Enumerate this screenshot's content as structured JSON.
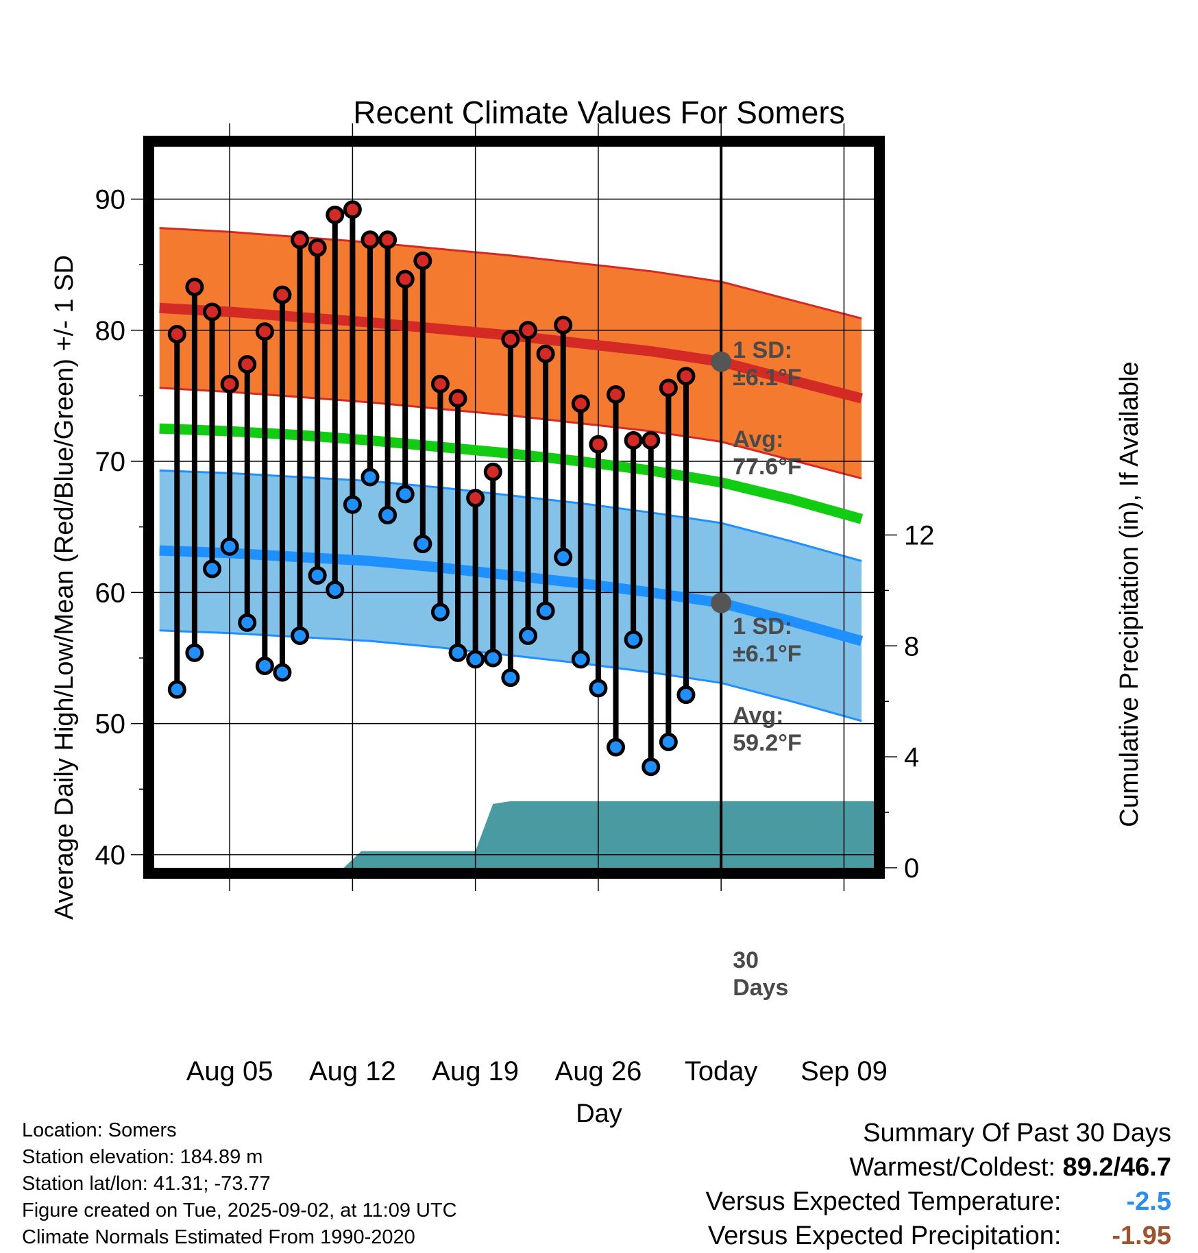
{
  "colors": {
    "high_band": "#f47a30",
    "high_line": "#d42a26",
    "mean_line": "#11cc11",
    "low_band": "#82c1e8",
    "low_line": "#1e90ff",
    "precip_fill": "#4a9aa2",
    "high_marker": "#d42a26",
    "low_marker": "#1e90ff",
    "avg_marker": "#555555",
    "temp_departure": "#2a8ef0",
    "precip_departure": "#a0522d"
  },
  "footer": {
    "location": "Location: Somers",
    "elevation": "Station elevation: 184.89 m",
    "latlon": "Station lat/lon: 41.31; -73.77",
    "created": "Figure created on Tue, 2025-09-02, at 11:09 UTC",
    "normals": "Climate Normals Estimated From 1990-2020"
  },
  "summary": {
    "heading": "Summary Of Past 30 Days",
    "warm_cold_label": "Warmest/Coldest:",
    "warm_cold_value": "89.2/46.7",
    "temp_label": "Versus Expected Temperature:",
    "temp_value": "-2.5",
    "precip_label": "Versus Expected Precipitation:",
    "precip_value": "-1.95"
  },
  "chart_data": {
    "type": "line",
    "title": "Recent Climate Values For Somers",
    "xlabel": "Day",
    "ylabel": "Average Daily High/Low/Mean (Red/Blue/Green) +/- 1 SD",
    "y2label": "Cumulative Precipitation (in), If Available",
    "ylim": [
      39,
      94
    ],
    "y2lim": [
      0,
      26
    ],
    "yticks": [
      40,
      50,
      60,
      70,
      80,
      90
    ],
    "y2ticks": [
      0,
      4,
      8,
      12
    ],
    "xlim": [
      0.7,
      41.7
    ],
    "xticks": [
      {
        "day": 5,
        "label": "Aug 05"
      },
      {
        "day": 12,
        "label": "Aug 12"
      },
      {
        "day": 19,
        "label": "Aug 19"
      },
      {
        "day": 26,
        "label": "Aug 26"
      },
      {
        "day": 33,
        "label": "Today"
      },
      {
        "day": 40,
        "label": "Sep 09"
      }
    ],
    "today_day": 33,
    "observed": {
      "days": [
        2,
        3,
        4,
        5,
        6,
        7,
        8,
        9,
        10,
        11,
        12,
        13,
        14,
        15,
        16,
        17,
        18,
        19,
        20,
        21,
        22,
        23,
        24,
        25,
        26,
        27,
        28,
        29,
        30,
        31,
        32
      ],
      "highs": [
        79.7,
        83.3,
        81.4,
        75.9,
        77.4,
        79.9,
        82.7,
        86.9,
        86.3,
        88.8,
        89.2,
        86.9,
        86.9,
        83.9,
        85.3,
        75.9,
        74.8,
        67.2,
        69.2,
        79.3,
        80.0,
        78.2,
        80.4,
        74.4,
        71.3,
        75.1,
        71.6,
        71.6,
        75.6,
        76.5,
        null
      ],
      "lows": [
        52.6,
        55.4,
        61.8,
        63.5,
        57.7,
        54.4,
        53.9,
        56.7,
        61.3,
        60.2,
        66.7,
        68.8,
        65.9,
        67.5,
        63.7,
        58.5,
        55.4,
        54.9,
        55.0,
        53.5,
        56.7,
        58.6,
        62.7,
        54.9,
        52.7,
        48.2,
        56.4,
        46.7,
        48.6,
        52.2,
        null
      ]
    },
    "normals": {
      "days": [
        1,
        5,
        9,
        13,
        17,
        21,
        25,
        29,
        33,
        37,
        41
      ],
      "high_avg": [
        81.7,
        81.4,
        81.0,
        80.6,
        80.1,
        79.6,
        79.0,
        78.4,
        77.6,
        76.2,
        74.8
      ],
      "high_sd": 6.1,
      "low_avg": [
        63.2,
        63.0,
        62.7,
        62.4,
        61.9,
        61.3,
        60.7,
        60.0,
        59.2,
        57.8,
        56.3
      ],
      "low_sd": 6.1,
      "mean_avg": [
        72.5,
        72.3,
        72.0,
        71.6,
        71.1,
        70.6,
        70.0,
        69.3,
        68.4,
        67.1,
        65.6
      ]
    },
    "precip": {
      "days": [
        11.5,
        12.5,
        19,
        20,
        21,
        41.7
      ],
      "values": [
        0,
        0.6,
        0.6,
        2.3,
        2.4,
        2.4
      ]
    },
    "annotations": {
      "high_sd": [
        "1 SD:",
        "±6.1°F"
      ],
      "high_avg": [
        "Avg:",
        "77.6°F"
      ],
      "low_sd": [
        "1 SD:",
        "±6.1°F"
      ],
      "low_avg": [
        "Avg:",
        "59.2°F"
      ],
      "precip_days": [
        "30",
        "Days"
      ]
    }
  }
}
